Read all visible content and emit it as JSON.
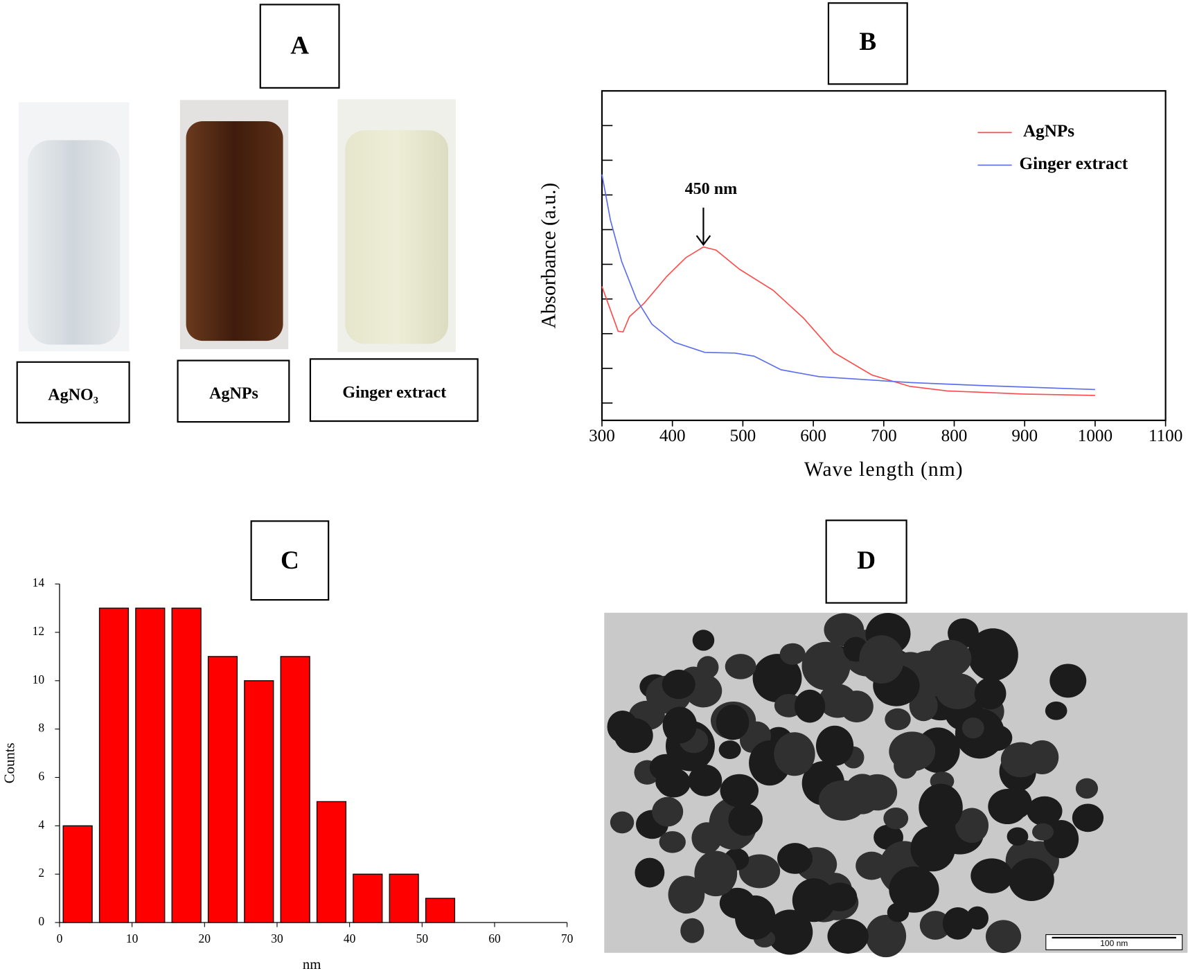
{
  "panel_labels": [
    "A",
    "B",
    "C",
    "D"
  ],
  "tubes": {
    "labels": [
      "AgNO₃",
      "AgNPs",
      "Ginger extract"
    ]
  },
  "tem": {
    "scale_bar": "100 nm"
  },
  "chart_data": [
    {
      "type": "line",
      "xlabel": "Wave length (nm)",
      "ylabel": "Absorbance (a.u.)",
      "xlim": [
        300,
        1100
      ],
      "xticks": [
        300,
        400,
        500,
        600,
        700,
        800,
        900,
        1000,
        1100
      ],
      "ylim": [
        -0.5,
        9
      ],
      "yticks": [
        0,
        1,
        2,
        3,
        4,
        5,
        6,
        7,
        8
      ],
      "ytick_labels": false,
      "legend": "upper right",
      "annotations": [
        {
          "text": "450 nm",
          "x": 444,
          "y": 4.5
        }
      ],
      "series": [
        {
          "name": "AgNPs",
          "color": "#ff4a4a",
          "x": [
            300,
            323,
            330,
            339,
            360,
            392,
            419,
            444,
            462,
            495,
            543,
            586,
            629,
            683,
            737,
            790,
            898,
            1000
          ],
          "values": [
            3.36,
            2.07,
            2.05,
            2.49,
            2.88,
            3.65,
            4.19,
            4.5,
            4.41,
            3.86,
            3.25,
            2.45,
            1.46,
            0.81,
            0.48,
            0.35,
            0.26,
            0.22
          ]
        },
        {
          "name": "Ginger extract",
          "color": "#5a6cf0",
          "x": [
            300,
            312,
            328,
            349,
            371,
            403,
            446,
            489,
            516,
            554,
            608,
            737,
            844,
            1000
          ],
          "values": [
            6.59,
            5.28,
            4.08,
            2.99,
            2.27,
            1.75,
            1.46,
            1.44,
            1.35,
            0.96,
            0.76,
            0.59,
            0.5,
            0.39
          ]
        }
      ]
    },
    {
      "type": "histogram",
      "xlabel": "nm",
      "ylabel": "Counts",
      "color": "#ff0000",
      "bins": [
        0,
        5,
        10,
        15,
        20,
        25,
        30,
        35,
        40,
        45,
        50,
        55
      ],
      "values": [
        4,
        13,
        13,
        13,
        11,
        10,
        11,
        5,
        2,
        2,
        1
      ],
      "xlim": [
        0,
        70
      ],
      "xticks": [
        0,
        10,
        20,
        30,
        40,
        50,
        60,
        70
      ],
      "ylim": [
        0,
        14
      ],
      "yticks": [
        0,
        2,
        4,
        6,
        8,
        10,
        12,
        14
      ]
    }
  ]
}
